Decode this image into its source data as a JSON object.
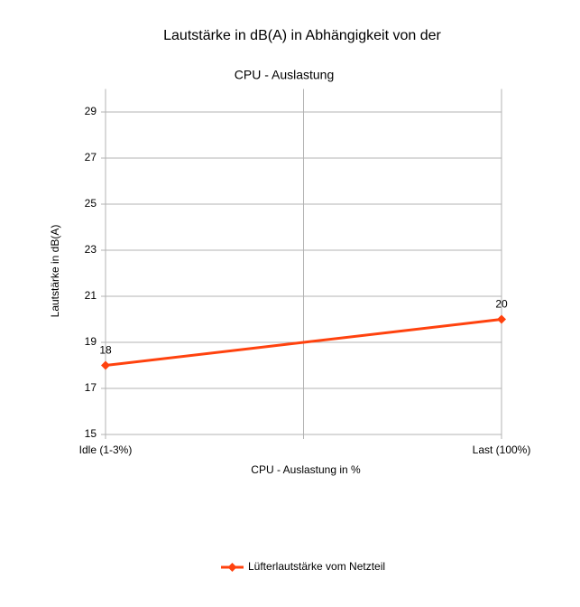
{
  "chart_data": {
    "type": "line",
    "title": [
      "Lautstärke in dB(A) in Abhängigkeit von der",
      "CPU - Auslastung"
    ],
    "x_label": "CPU - Auslastung in %",
    "y_label": "Lautstärke in dB(A)",
    "categories": [
      "Idle (1-3%)",
      "Last (100%)"
    ],
    "series": [
      {
        "name": "Lüfterlautstärke vom Netzteil",
        "color": "#ff420e",
        "values": [
          18,
          20
        ]
      }
    ],
    "ylim": [
      15,
      30
    ],
    "yticks": [
      15,
      17,
      19,
      21,
      23,
      25,
      27,
      29
    ],
    "grid": true,
    "data_labels": true,
    "legend": "bottom"
  }
}
